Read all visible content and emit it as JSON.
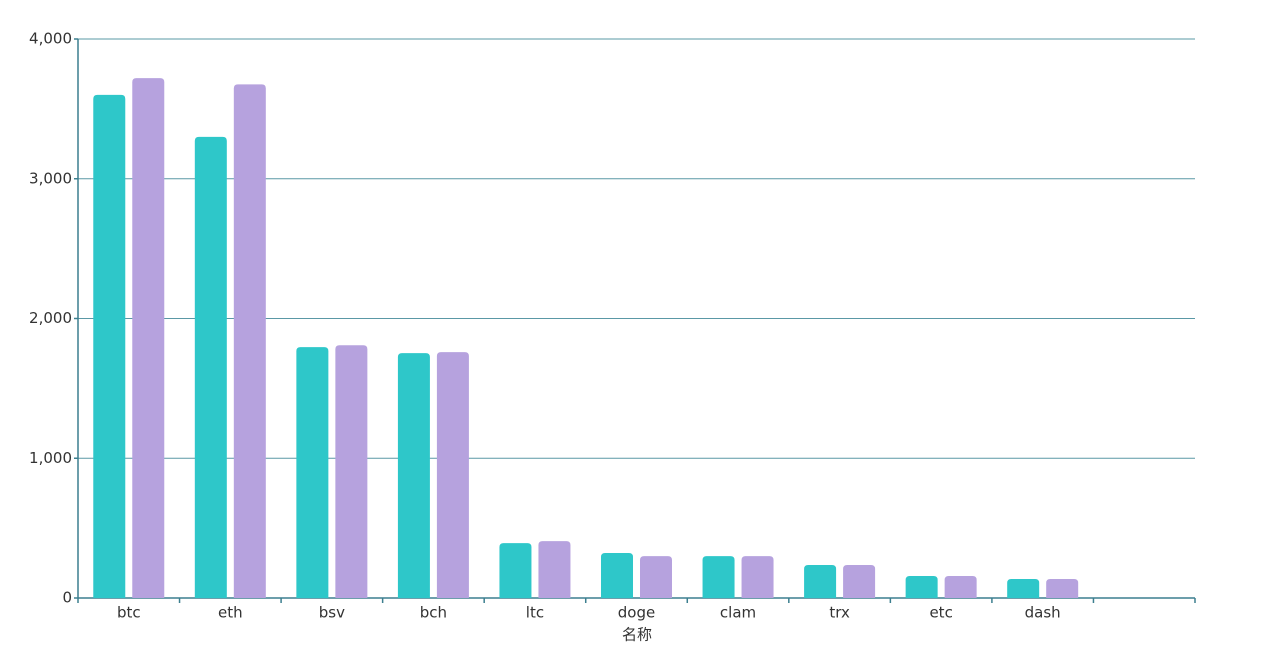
{
  "chart_data": {
    "type": "bar",
    "x_label": "名称",
    "categories": [
      "btc",
      "eth",
      "bsv",
      "bch",
      "ltc",
      "doge",
      "clam",
      "trx",
      "etc",
      "dash",
      null
    ],
    "series": [
      {
        "color": "#2ec7c9",
        "values": [
          3600,
          3300,
          1795,
          1752,
          393,
          322,
          300,
          236,
          157,
          136,
          null
        ]
      },
      {
        "color": "#b6a2de",
        "values": [
          3720,
          3675,
          1809,
          1759,
          407,
          300,
          300,
          236,
          157,
          136,
          null
        ]
      }
    ],
    "ylim": [
      0,
      4000
    ],
    "yticks": [
      0,
      {
        "value": 1000,
        "label": "1,000"
      },
      {
        "value": 2000,
        "label": "2,000"
      },
      {
        "value": 3000,
        "label": "3,000"
      },
      {
        "value": 4000,
        "label": "4,000"
      }
    ],
    "grid": true
  }
}
